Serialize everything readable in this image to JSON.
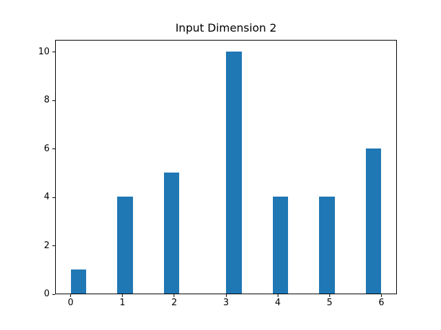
{
  "window": {
    "background": "#ffffff"
  },
  "chart_data": {
    "type": "bar",
    "subtype": "histogram",
    "title": "Input Dimension 2",
    "bar_color": "#1f77b4",
    "values": [
      1,
      4,
      5,
      10,
      4,
      4,
      6
    ],
    "bar_left_edges": [
      0.0,
      0.9,
      1.8,
      3.0,
      3.9,
      4.8,
      5.7
    ],
    "bar_width": 0.3,
    "x_ticks": [
      0,
      1,
      2,
      3,
      4,
      5,
      6
    ],
    "y_ticks": [
      0,
      2,
      4,
      6,
      8,
      10
    ],
    "xlim": [
      -0.3,
      6.3
    ],
    "ylim": [
      0,
      10.5
    ],
    "xlabel": "",
    "ylabel": "",
    "grid": false,
    "legend": "none"
  }
}
